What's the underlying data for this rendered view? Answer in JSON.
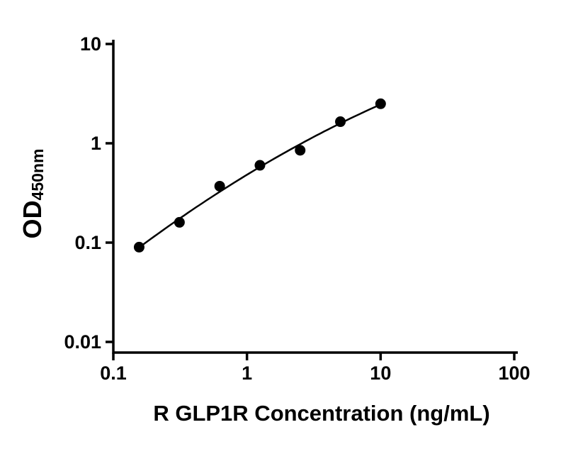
{
  "chart_data": {
    "type": "scatter",
    "title": "",
    "xlabel": "R GLP1R Concentration (ng/mL)",
    "ylabel_main": "OD",
    "ylabel_sub": "450nm",
    "x_scale": "log10",
    "y_scale": "log10",
    "xlim": [
      0.1,
      100
    ],
    "ylim": [
      0.01,
      10
    ],
    "x_ticks": [
      0.1,
      1,
      10,
      100
    ],
    "x_tick_labels": [
      "0.1",
      "1",
      "10",
      "100"
    ],
    "y_ticks": [
      0.01,
      0.1,
      1,
      10
    ],
    "y_tick_labels": [
      "0.01",
      "0.1",
      "1",
      "10"
    ],
    "grid": false,
    "legend": false,
    "series": [
      {
        "x": [
          0.156,
          0.3125,
          0.625,
          1.25,
          2.5,
          5,
          10
        ],
        "y": [
          0.09,
          0.16,
          0.37,
          0.6,
          0.85,
          1.65,
          2.5
        ],
        "marker": "filled-circle",
        "marker_color": "#000000",
        "line": "smooth-fit-curve",
        "line_color": "#000000"
      }
    ]
  },
  "colors": {
    "background": "#ffffff",
    "axis": "#000000",
    "text": "#000000"
  }
}
